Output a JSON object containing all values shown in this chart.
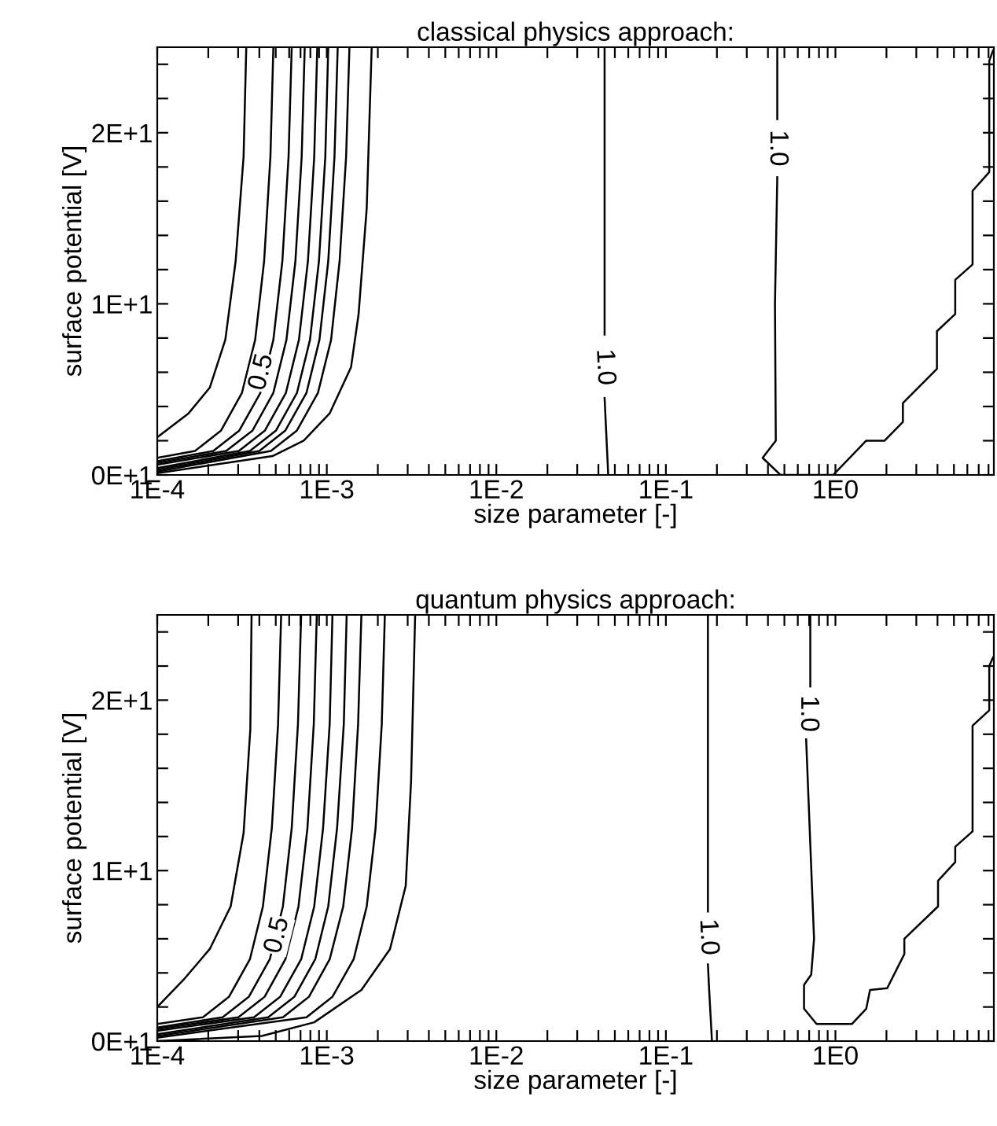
{
  "chart_data": [
    {
      "type": "line",
      "title": "classical physics approach:",
      "xlabel": "size parameter [-]",
      "ylabel": "surface potential [V]",
      "log": "x",
      "xlim": [
        0.0001,
        8.6
      ],
      "ylim": [
        0,
        25
      ],
      "xticks": [
        {
          "value": 0.0001,
          "label": "1E-4"
        },
        {
          "value": 0.0002,
          "label": null
        },
        {
          "value": 0.0003,
          "label": null
        },
        {
          "value": 0.0004,
          "label": null
        },
        {
          "value": 0.0005,
          "label": null
        },
        {
          "value": 0.0006,
          "label": null
        },
        {
          "value": 0.0007,
          "label": null
        },
        {
          "value": 0.0008,
          "label": null
        },
        {
          "value": 0.0009,
          "label": null
        },
        {
          "value": 0.001,
          "label": "1E-3"
        },
        {
          "value": 0.002,
          "label": null
        },
        {
          "value": 0.003,
          "label": null
        },
        {
          "value": 0.004,
          "label": null
        },
        {
          "value": 0.005,
          "label": null
        },
        {
          "value": 0.006,
          "label": null
        },
        {
          "value": 0.007,
          "label": null
        },
        {
          "value": 0.008,
          "label": null
        },
        {
          "value": 0.009,
          "label": null
        },
        {
          "value": 0.01,
          "label": "1E-2"
        },
        {
          "value": 0.02,
          "label": null
        },
        {
          "value": 0.03,
          "label": null
        },
        {
          "value": 0.04,
          "label": null
        },
        {
          "value": 0.05,
          "label": null
        },
        {
          "value": 0.06,
          "label": null
        },
        {
          "value": 0.07,
          "label": null
        },
        {
          "value": 0.08,
          "label": null
        },
        {
          "value": 0.09,
          "label": null
        },
        {
          "value": 0.1,
          "label": "1E-1"
        },
        {
          "value": 0.2,
          "label": null
        },
        {
          "value": 0.3,
          "label": null
        },
        {
          "value": 0.4,
          "label": null
        },
        {
          "value": 0.5,
          "label": null
        },
        {
          "value": 0.6,
          "label": null
        },
        {
          "value": 0.7,
          "label": null
        },
        {
          "value": 0.8,
          "label": null
        },
        {
          "value": 0.9,
          "label": null
        },
        {
          "value": 1,
          "label": "1E0"
        },
        {
          "value": 2,
          "label": null
        },
        {
          "value": 3,
          "label": null
        },
        {
          "value": 4,
          "label": null
        },
        {
          "value": 5,
          "label": null
        },
        {
          "value": 6,
          "label": null
        },
        {
          "value": 7,
          "label": null
        },
        {
          "value": 8,
          "label": null
        }
      ],
      "yticks": [
        {
          "value": 0,
          "label": "0E+1"
        },
        {
          "value": 2,
          "label": null
        },
        {
          "value": 4,
          "label": null
        },
        {
          "value": 6,
          "label": null
        },
        {
          "value": 8,
          "label": null
        },
        {
          "value": 10,
          "label": "1E+1"
        },
        {
          "value": 12,
          "label": null
        },
        {
          "value": 14,
          "label": null
        },
        {
          "value": 16,
          "label": null
        },
        {
          "value": 18,
          "label": null
        },
        {
          "value": 20,
          "label": "2E+1"
        },
        {
          "value": 22,
          "label": null
        },
        {
          "value": 24,
          "label": null
        }
      ],
      "grid": false,
      "legend": false,
      "series": [
        {
          "color": "#000000",
          "x": [
            0.0001,
            0.000153,
            0.000204,
            0.000252,
            0.00029,
            0.000323,
            0.000335
          ],
          "values": [
            2.2,
            3.6,
            5.1,
            7.9,
            12.5,
            18.6,
            25
          ]
        },
        {
          "color": "#000000",
          "x": [
            0.0001,
            0.000167,
            0.000238,
            0.000316,
            0.000378,
            0.000427,
            0.000465,
            0.000484
          ],
          "values": [
            1.0,
            1.4,
            2.6,
            4.8,
            7.9,
            12.5,
            18.6,
            25
          ]
        },
        {
          "color": "#000000",
          "x": [
            0.0001,
            0.000214,
            0.000305,
            0.000406,
            0.000484,
            0.000547,
            0.000595,
            0.000621
          ],
          "values": [
            0.8,
            1.4,
            2.6,
            4.8,
            7.9,
            12.5,
            18.6,
            25
          ]
        },
        {
          "color": "#000000",
          "x": [
            0.0001,
            0.000255,
            0.000365,
            0.000484,
            0.000578,
            0.000653,
            0.000711,
            0.000741
          ],
          "values": [
            0.7,
            1.4,
            2.6,
            4.8,
            7.9,
            12.5,
            18.6,
            25
          ]
        },
        {
          "color": "#000000",
          "x": [
            0.0001,
            0.000303,
            0.000432,
            0.000574,
            0.000685,
            0.000774,
            0.000843,
            0.000879
          ],
          "values": [
            0.6,
            1.4,
            2.6,
            4.8,
            7.9,
            12.5,
            18.6,
            25
          ]
        },
        {
          "color": "#000000",
          "x": [
            0.0001,
            0.000352,
            0.000502,
            0.000667,
            0.000796,
            0.000899,
            0.00098,
            0.00102
          ],
          "values": [
            0.4,
            1.4,
            2.6,
            4.8,
            7.9,
            12.5,
            18.6,
            25
          ]
        },
        {
          "color": "#000000",
          "x": [
            0.0001,
            0.0004,
            0.00057,
            0.000759,
            0.000905,
            0.00102,
            0.00111,
            0.00116
          ],
          "values": [
            0.3,
            1.4,
            2.6,
            4.8,
            7.9,
            12.5,
            18.6,
            25
          ]
        },
        {
          "color": "#000000",
          "x": [
            0.0001,
            0.000468,
            0.000667,
            0.000887,
            0.00106,
            0.00119,
            0.0013,
            0.00136
          ],
          "values": [
            0.2,
            1.4,
            2.6,
            4.8,
            7.9,
            12.5,
            18.6,
            25
          ]
        },
        {
          "color": "#000000",
          "x": [
            0.0001,
            0.000478,
            0.000731,
            0.00104,
            0.00139,
            0.00154,
            0.00172,
            0.00184
          ],
          "values": [
            0.1,
            1.1,
            2.0,
            3.6,
            6.3,
            9.4,
            15.6,
            25
          ]
        },
        {
          "color": "#000000",
          "x": [
            0.0435,
            0.0435,
            null,
            0.0435,
            0.0457
          ],
          "values": [
            25,
            8.2,
            null,
            4.5,
            0
          ]
        },
        {
          "color": "#000000",
          "x": [
            0.454,
            0.454,
            null,
            0.454,
            0.44,
            0.445,
            0.372,
            0.474,
            0.97,
            1.52,
            1.95,
            2.5,
            2.5,
            3.97,
            3.97,
            5.09,
            5.09,
            6.44,
            6.44,
            8.08,
            8.08,
            8.5
          ],
          "values": [
            25,
            20.8,
            null,
            17.4,
            10,
            2.0,
            1.0,
            0,
            0,
            2.0,
            2.0,
            3.1,
            4.2,
            6.2,
            8.4,
            9.4,
            11.4,
            12.3,
            16.6,
            17.7,
            24.2,
            24.8
          ]
        }
      ],
      "annotations": [
        {
          "text": "0.5",
          "x": 0.000414,
          "y": 6.0
        },
        {
          "text": "1.0",
          "x": 0.0435,
          "y": 6.3
        },
        {
          "text": "1.0",
          "x": 0.454,
          "y": 19.1
        }
      ]
    },
    {
      "type": "line",
      "title": "quantum physics approach:",
      "xlabel": "size parameter [-]",
      "ylabel": "surface potential [V]",
      "log": "x",
      "xlim": [
        0.0001,
        8.6
      ],
      "ylim": [
        0,
        25
      ],
      "xticks": [
        {
          "value": 0.0001,
          "label": "1E-4"
        },
        {
          "value": 0.0002,
          "label": null
        },
        {
          "value": 0.0003,
          "label": null
        },
        {
          "value": 0.0004,
          "label": null
        },
        {
          "value": 0.0005,
          "label": null
        },
        {
          "value": 0.0006,
          "label": null
        },
        {
          "value": 0.0007,
          "label": null
        },
        {
          "value": 0.0008,
          "label": null
        },
        {
          "value": 0.0009,
          "label": null
        },
        {
          "value": 0.001,
          "label": "1E-3"
        },
        {
          "value": 0.002,
          "label": null
        },
        {
          "value": 0.003,
          "label": null
        },
        {
          "value": 0.004,
          "label": null
        },
        {
          "value": 0.005,
          "label": null
        },
        {
          "value": 0.006,
          "label": null
        },
        {
          "value": 0.007,
          "label": null
        },
        {
          "value": 0.008,
          "label": null
        },
        {
          "value": 0.009,
          "label": null
        },
        {
          "value": 0.01,
          "label": "1E-2"
        },
        {
          "value": 0.02,
          "label": null
        },
        {
          "value": 0.03,
          "label": null
        },
        {
          "value": 0.04,
          "label": null
        },
        {
          "value": 0.05,
          "label": null
        },
        {
          "value": 0.06,
          "label": null
        },
        {
          "value": 0.07,
          "label": null
        },
        {
          "value": 0.08,
          "label": null
        },
        {
          "value": 0.09,
          "label": null
        },
        {
          "value": 0.1,
          "label": "1E-1"
        },
        {
          "value": 0.2,
          "label": null
        },
        {
          "value": 0.3,
          "label": null
        },
        {
          "value": 0.4,
          "label": null
        },
        {
          "value": 0.5,
          "label": null
        },
        {
          "value": 0.6,
          "label": null
        },
        {
          "value": 0.7,
          "label": null
        },
        {
          "value": 0.8,
          "label": null
        },
        {
          "value": 0.9,
          "label": null
        },
        {
          "value": 1,
          "label": "1E0"
        },
        {
          "value": 2,
          "label": null
        },
        {
          "value": 3,
          "label": null
        },
        {
          "value": 4,
          "label": null
        },
        {
          "value": 5,
          "label": null
        },
        {
          "value": 6,
          "label": null
        },
        {
          "value": 7,
          "label": null
        },
        {
          "value": 8,
          "label": null
        }
      ],
      "yticks": [
        {
          "value": 0,
          "label": "0E+1"
        },
        {
          "value": 2,
          "label": null
        },
        {
          "value": 4,
          "label": null
        },
        {
          "value": 6,
          "label": null
        },
        {
          "value": 8,
          "label": null
        },
        {
          "value": 10,
          "label": "1E+1"
        },
        {
          "value": 12,
          "label": null
        },
        {
          "value": 14,
          "label": null
        },
        {
          "value": 16,
          "label": null
        },
        {
          "value": 18,
          "label": null
        },
        {
          "value": 20,
          "label": "2E+1"
        },
        {
          "value": 22,
          "label": null
        },
        {
          "value": 24,
          "label": null
        }
      ],
      "grid": false,
      "legend": false,
      "series": [
        {
          "color": "#000000",
          "x": [
            0.0001,
            0.000143,
            0.000204,
            0.000271,
            0.000323,
            0.000354,
            0.00036
          ],
          "values": [
            2.0,
            3.6,
            5.4,
            7.9,
            12.2,
            18.3,
            25
          ]
        },
        {
          "color": "#000000",
          "x": [
            0.0001,
            0.000186,
            0.000265,
            0.000352,
            0.00042,
            0.000474,
            0.000516,
            0.000538
          ],
          "values": [
            1.0,
            1.4,
            2.6,
            4.8,
            7.9,
            12.5,
            18.6,
            25
          ]
        },
        {
          "color": "#000000",
          "x": [
            0.0001,
            0.000243,
            0.000347,
            0.000461,
            0.000551,
            0.000621,
            0.000676,
            0.000706
          ],
          "values": [
            0.8,
            1.4,
            2.6,
            4.8,
            7.9,
            12.5,
            18.6,
            25
          ]
        },
        {
          "color": "#000000",
          "x": [
            0.0001,
            0.000301,
            0.00043,
            0.00057,
            0.000681,
            0.000769,
            0.000838,
            0.000873
          ],
          "values": [
            0.7,
            1.4,
            2.6,
            4.8,
            7.9,
            12.5,
            18.6,
            25
          ]
        },
        {
          "color": "#000000",
          "x": [
            0.0001,
            0.000372,
            0.000531,
            0.000706,
            0.000843,
            0.000951,
            0.00104,
            0.00108
          ],
          "values": [
            0.6,
            1.4,
            2.6,
            4.8,
            7.9,
            12.5,
            18.6,
            25
          ]
        },
        {
          "color": "#000000",
          "x": [
            0.0001,
            0.000451,
            0.000644,
            0.000855,
            0.00102,
            0.00115,
            0.00126,
            0.00131
          ],
          "values": [
            0.4,
            1.4,
            2.6,
            4.8,
            7.9,
            12.5,
            18.6,
            25
          ]
        },
        {
          "color": "#000000",
          "x": [
            0.0001,
            0.000551,
            0.000785,
            0.00104,
            0.00125,
            0.00141,
            0.00153,
            0.0016
          ],
          "values": [
            0.3,
            1.4,
            2.6,
            4.8,
            7.9,
            12.5,
            18.6,
            25
          ]
        },
        {
          "color": "#000000",
          "x": [
            0.0001,
            0.000759,
            0.00108,
            0.00144,
            0.00172,
            0.00194,
            0.00211,
            0.0022
          ],
          "values": [
            0.2,
            1.4,
            2.6,
            4.8,
            7.9,
            12.5,
            18.6,
            25
          ]
        },
        {
          "color": "#000000",
          "x": [
            0.0001,
            0.000414,
            0.000843,
            0.0016,
            0.00236,
            0.00292,
            0.00314,
            0.00332
          ],
          "values": [
            0,
            0.3,
            1.1,
            3.0,
            5.4,
            9.1,
            15.2,
            25
          ]
        },
        {
          "color": "#000000",
          "x": [
            0.177,
            0.177,
            null,
            0.177,
            0.18,
            0.187
          ],
          "values": [
            25,
            7.6,
            null,
            4.5,
            3.0,
            0
          ]
        },
        {
          "color": "#000000",
          "x": [
            0.711,
            0.711,
            null,
            0.672,
            0.748,
            0.72,
            0.653,
            0.653,
            0.774,
            1.25,
            1.52,
            1.6,
            2.02,
            2.55,
            2.55,
            4.03,
            4.03,
            5.09,
            5.09,
            6.44,
            6.44,
            8.08,
            8.08,
            8.5
          ],
          "values": [
            25,
            20.8,
            null,
            17.7,
            6.0,
            3.9,
            3.3,
            1.9,
            1.0,
            1.0,
            1.9,
            3.0,
            3.1,
            5.1,
            6.0,
            7.9,
            9.4,
            10.5,
            11.4,
            12.3,
            18.5,
            19.4,
            22.0,
            22.5
          ]
        }
      ],
      "annotations": [
        {
          "text": "0.5",
          "x": 0.000513,
          "y": 6.2
        },
        {
          "text": "1.0",
          "x": 0.177,
          "y": 6.1
        },
        {
          "text": "1.0",
          "x": 0.69,
          "y": 19.2
        }
      ]
    }
  ]
}
